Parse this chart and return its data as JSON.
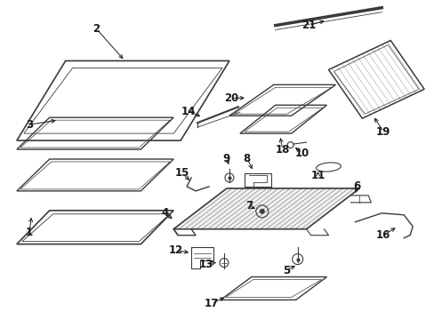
{
  "bg_color": "#ffffff",
  "line_color": "#3a3a3a",
  "label_color": "#1a1a1a",
  "figsize": [
    4.89,
    3.6
  ],
  "dpi": 100,
  "lw_main": 1.0,
  "lw_thin": 0.6,
  "lw_border": 1.2
}
